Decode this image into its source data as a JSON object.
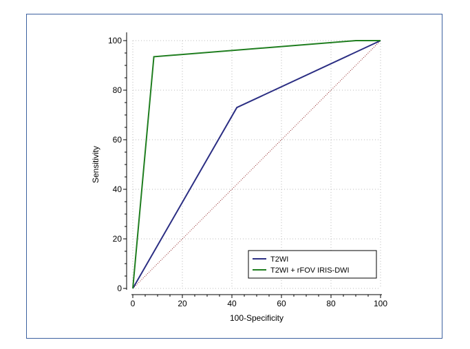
{
  "chart_data": {
    "type": "line",
    "title": "",
    "xlabel": "100-Specificity",
    "ylabel": "Sensitivity",
    "xlim": [
      0,
      100
    ],
    "ylim": [
      0,
      100
    ],
    "xticks": [
      0,
      20,
      40,
      60,
      80,
      100
    ],
    "yticks": [
      0,
      20,
      40,
      60,
      80,
      100
    ],
    "grid": true,
    "legend_position": "bottom-right",
    "series": [
      {
        "name": "T2WI",
        "color": "#2b2e83",
        "x": [
          0,
          42,
          100
        ],
        "y": [
          0,
          73,
          100
        ]
      },
      {
        "name": "T2WI + rFOV IRIS-DWI",
        "color": "#1e7d1e",
        "x": [
          0,
          8.5,
          90,
          100
        ],
        "y": [
          0,
          93.5,
          100,
          100
        ]
      }
    ],
    "reference_line": {
      "color": "#8b1a1a",
      "x": [
        0,
        100
      ],
      "y": [
        0,
        100
      ]
    }
  }
}
